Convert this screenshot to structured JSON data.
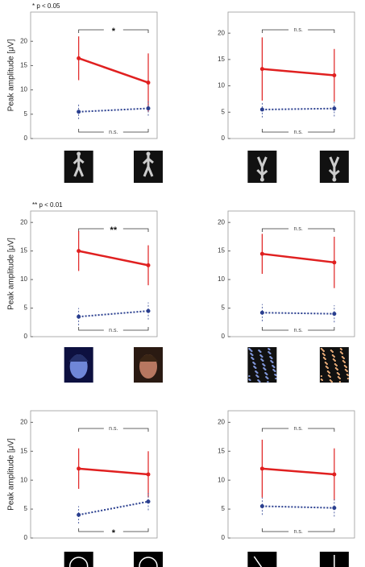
{
  "chart_data": [
    {
      "type": "line",
      "note": "* p < 0.05",
      "y_label": "Peak amplitude [μV]",
      "categories": [
        null,
        null
      ],
      "ylim": [
        0,
        26
      ],
      "yticks": [
        0,
        5,
        10,
        15,
        20
      ],
      "series": [
        {
          "color": "#e02020",
          "style": "solid",
          "values": [
            16.5,
            11.5
          ],
          "errors": [
            4.5,
            6
          ]
        },
        {
          "color": "#2a3f8f",
          "style": "dotted",
          "values": [
            5.5,
            6.2
          ],
          "errors": [
            1.5,
            1.5
          ]
        }
      ],
      "top_annotation": "*",
      "bottom_annotation": "n.s."
    },
    {
      "type": "line",
      "categories": [
        null,
        null
      ],
      "ylim": [
        0,
        24
      ],
      "yticks": [
        0,
        5,
        10,
        15,
        20
      ],
      "series": [
        {
          "color": "#e02020",
          "style": "solid",
          "values": [
            13.2,
            12
          ],
          "errors": [
            6,
            5
          ]
        },
        {
          "color": "#2a3f8f",
          "style": "dotted",
          "values": [
            5.5,
            5.7
          ],
          "errors": [
            1.5,
            1.5
          ]
        }
      ],
      "top_annotation": "n.s.",
      "bottom_annotation": "n.s."
    },
    {
      "type": "line",
      "note": "** p < 0.01",
      "y_label": "Peak amplitude [μV]",
      "categories": [
        null,
        null
      ],
      "ylim": [
        0,
        22
      ],
      "yticks": [
        0,
        5,
        10,
        15,
        20
      ],
      "series": [
        {
          "color": "#e02020",
          "style": "solid",
          "values": [
            15,
            12.5
          ],
          "errors": [
            3.5,
            3.5
          ]
        },
        {
          "color": "#2a3f8f",
          "style": "dotted",
          "values": [
            3.5,
            4.5
          ],
          "errors": [
            1.5,
            1.5
          ]
        }
      ],
      "top_annotation": "**",
      "bottom_annotation": "n.s."
    },
    {
      "type": "line",
      "categories": [
        null,
        null
      ],
      "ylim": [
        0,
        22
      ],
      "yticks": [
        0,
        5,
        10,
        15,
        20
      ],
      "series": [
        {
          "color": "#e02020",
          "style": "solid",
          "values": [
            14.5,
            13
          ],
          "errors": [
            3.5,
            4.5
          ]
        },
        {
          "color": "#2a3f8f",
          "style": "dotted",
          "values": [
            4.2,
            4
          ],
          "errors": [
            1.5,
            1.5
          ]
        }
      ],
      "top_annotation": "n.s.",
      "bottom_annotation": "n.s."
    },
    {
      "type": "line",
      "y_label": "Peak amplitude [μV]",
      "categories": [
        null,
        null
      ],
      "ylim": [
        0,
        22
      ],
      "yticks": [
        0,
        5,
        10,
        15,
        20
      ],
      "series": [
        {
          "color": "#e02020",
          "style": "solid",
          "values": [
            12,
            11
          ],
          "errors": [
            3.5,
            4
          ]
        },
        {
          "color": "#2a3f8f",
          "style": "dotted",
          "values": [
            4,
            6.3
          ],
          "errors": [
            1.5,
            1.5
          ]
        }
      ],
      "top_annotation": "n.s.",
      "bottom_annotation": "*"
    },
    {
      "type": "line",
      "categories": [
        null,
        null
      ],
      "ylim": [
        0,
        22
      ],
      "yticks": [
        0,
        5,
        10,
        15,
        20
      ],
      "series": [
        {
          "color": "#e02020",
          "style": "solid",
          "values": [
            12,
            11
          ],
          "errors": [
            5,
            4.5
          ]
        },
        {
          "color": "#2a3f8f",
          "style": "dotted",
          "values": [
            5.5,
            5.2
          ],
          "errors": [
            1.5,
            1.5
          ]
        }
      ],
      "top_annotation": "n.s.",
      "bottom_annotation": "n.s."
    }
  ]
}
